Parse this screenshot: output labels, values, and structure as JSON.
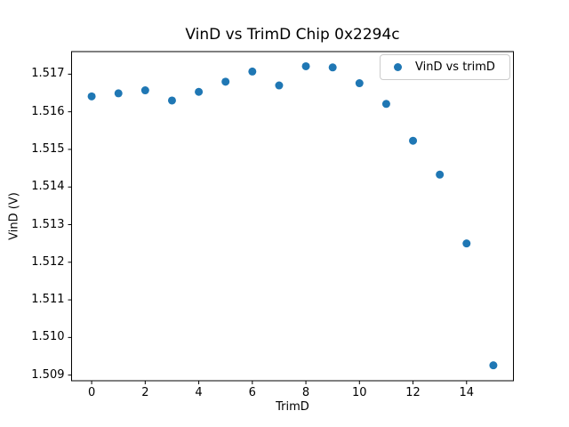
{
  "chart_data": {
    "type": "scatter",
    "title": "VinD vs TrimD Chip 0x2294c",
    "xlabel": "TrimD",
    "ylabel": "VinD (V)",
    "series": [
      {
        "name": "VinD vs trimD",
        "x": [
          0,
          1,
          2,
          3,
          4,
          5,
          6,
          7,
          8,
          9,
          10,
          11,
          12,
          13,
          14,
          15
        ],
        "y": [
          1.51641,
          1.51649,
          1.51657,
          1.5163,
          1.51653,
          1.5168,
          1.51707,
          1.5167,
          1.51721,
          1.51718,
          1.51676,
          1.51621,
          1.51523,
          1.51433,
          1.5125,
          1.50926
        ]
      }
    ],
    "xlim": [
      -0.75,
      15.75
    ],
    "ylim": [
      1.50885,
      1.5176
    ],
    "xticks": [
      0,
      2,
      4,
      6,
      8,
      10,
      12,
      14
    ],
    "xtick_labels": [
      "0",
      "2",
      "4",
      "6",
      "8",
      "10",
      "12",
      "14"
    ],
    "yticks": [
      1.509,
      1.51,
      1.511,
      1.512,
      1.513,
      1.514,
      1.515,
      1.516,
      1.517
    ],
    "ytick_labels": [
      "1.509",
      "1.510",
      "1.511",
      "1.512",
      "1.513",
      "1.514",
      "1.515",
      "1.516",
      "1.517"
    ],
    "grid": false,
    "legend": {
      "position": "upper right",
      "entries": [
        "VinD vs trimD"
      ]
    },
    "marker_color": "#1f77b4",
    "background_color": "#ffffff",
    "spine_color": "#000000"
  }
}
